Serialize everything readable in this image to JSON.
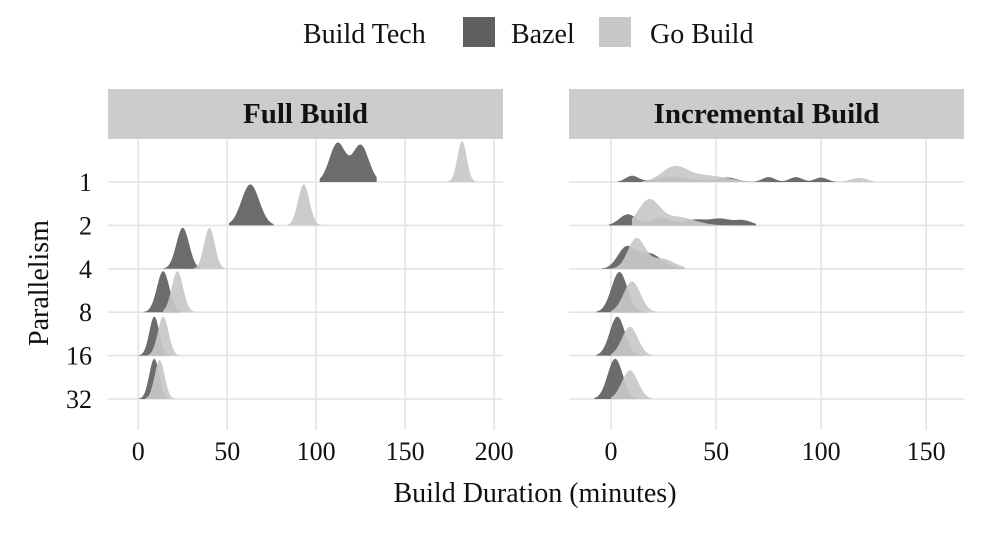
{
  "chart_data": {
    "type": "ridgeline",
    "xlabel": "Build Duration (minutes)",
    "ylabel": "Parallelism",
    "legend": {
      "title": "Build Tech",
      "position": "top",
      "entries": [
        {
          "name": "Bazel",
          "color": "#5f5f5f"
        },
        {
          "name": "Go Build",
          "color": "#c8c8c8"
        }
      ]
    },
    "y_categories": [
      "1",
      "2",
      "4",
      "8",
      "16",
      "32"
    ],
    "panel_bg": "#cccccc",
    "grid_color": "#e4e4e4",
    "panels": [
      {
        "title": "Full Build",
        "x_range": [
          -17,
          205
        ],
        "x_ticks": [
          0,
          50,
          100,
          150,
          200
        ],
        "x_tick_labels": [
          "0",
          "50",
          "100",
          "150",
          "200"
        ],
        "series": [
          {
            "name": "Bazel",
            "color": "#5f5f5f",
            "ridges": [
              {
                "p": "1",
                "lo": 102,
                "hi": 134,
                "peaks": [
                  [
                    112,
                    4.5,
                    0.95
                  ],
                  [
                    125,
                    4.5,
                    0.9
                  ]
                ]
              },
              {
                "p": "2",
                "lo": 51,
                "hi": 76,
                "peaks": [
                  [
                    63,
                    5,
                    1.0
                  ]
                ]
              },
              {
                "p": "4",
                "lo": 14,
                "hi": 35,
                "peaks": [
                  [
                    25,
                    3.6,
                    1.0
                  ]
                ]
              },
              {
                "p": "8",
                "lo": 3,
                "hi": 24,
                "peaks": [
                  [
                    14,
                    3.5,
                    1.0
                  ]
                ]
              },
              {
                "p": "16",
                "lo": 0,
                "hi": 18,
                "peaks": [
                  [
                    9,
                    2.8,
                    0.95
                  ]
                ]
              },
              {
                "p": "32",
                "lo": 0,
                "hi": 17,
                "peaks": [
                  [
                    9,
                    2.8,
                    0.98
                  ]
                ]
              }
            ]
          },
          {
            "name": "Go Build",
            "color": "#c8c8c8",
            "ridges": [
              {
                "p": "1",
                "lo": 173,
                "hi": 193,
                "peaks": [
                  [
                    182,
                    2.6,
                    1.0
                  ]
                ]
              },
              {
                "p": "2",
                "lo": 84,
                "hi": 104,
                "peaks": [
                  [
                    93,
                    3.2,
                    1.0
                  ]
                ]
              },
              {
                "p": "4",
                "lo": 31,
                "hi": 50,
                "peaks": [
                  [
                    40,
                    3.0,
                    1.0
                  ]
                ]
              },
              {
                "p": "8",
                "lo": 14,
                "hi": 33,
                "peaks": [
                  [
                    22,
                    3.2,
                    1.0
                  ]
                ]
              },
              {
                "p": "16",
                "lo": 5,
                "hi": 25,
                "peaks": [
                  [
                    14,
                    3.0,
                    0.95
                  ]
                ]
              },
              {
                "p": "32",
                "lo": 4,
                "hi": 22,
                "peaks": [
                  [
                    12,
                    2.8,
                    0.95
                  ]
                ]
              }
            ]
          }
        ]
      },
      {
        "title": "Incremental Build",
        "x_range": [
          -20,
          168
        ],
        "x_ticks": [
          0,
          50,
          100,
          150
        ],
        "x_tick_labels": [
          "0",
          "50",
          "100",
          "150"
        ],
        "series": [
          {
            "name": "Bazel",
            "color": "#5f5f5f",
            "ridges": [
              {
                "p": "1",
                "lo": 3,
                "hi": 107,
                "peaks": [
                  [
                    10,
                    3,
                    0.15
                  ],
                  [
                    30,
                    8,
                    0.12
                  ],
                  [
                    55,
                    5,
                    0.11
                  ],
                  [
                    75,
                    3,
                    0.12
                  ],
                  [
                    88,
                    3,
                    0.12
                  ],
                  [
                    100,
                    3,
                    0.11
                  ]
                ]
              },
              {
                "p": "2",
                "lo": -1,
                "hi": 69,
                "peaks": [
                  [
                    8,
                    4,
                    0.27
                  ],
                  [
                    24,
                    5,
                    0.18
                  ],
                  [
                    40,
                    5,
                    0.14
                  ],
                  [
                    52,
                    5,
                    0.16
                  ],
                  [
                    63,
                    4,
                    0.12
                  ]
                ]
              },
              {
                "p": "4",
                "lo": -5,
                "hi": 35,
                "peaks": [
                  [
                    7,
                    4,
                    0.48
                  ],
                  [
                    18,
                    6,
                    0.38
                  ]
                ]
              },
              {
                "p": "8",
                "lo": -7,
                "hi": 26,
                "peaks": [
                  [
                    4,
                    3.8,
                    0.98
                  ]
                ]
              },
              {
                "p": "16",
                "lo": -7,
                "hi": 22,
                "peaks": [
                  [
                    3,
                    3.6,
                    0.95
                  ]
                ]
              },
              {
                "p": "32",
                "lo": -8,
                "hi": 22,
                "peaks": [
                  [
                    2,
                    3.6,
                    0.98
                  ]
                ]
              }
            ]
          },
          {
            "name": "Go Build",
            "color": "#c8c8c8",
            "ridges": [
              {
                "p": "1",
                "lo": 15,
                "hi": 125,
                "peaks": [
                  [
                    30,
                    6,
                    0.34
                  ],
                  [
                    45,
                    10,
                    0.16
                  ],
                  [
                    118,
                    4,
                    0.1
                  ]
                ]
              },
              {
                "p": "2",
                "lo": 10,
                "hi": 68,
                "peaks": [
                  [
                    18,
                    5,
                    0.6
                  ],
                  [
                    32,
                    8,
                    0.2
                  ]
                ]
              },
              {
                "p": "4",
                "lo": 0,
                "hi": 35,
                "peaks": [
                  [
                    12,
                    4,
                    0.72
                  ],
                  [
                    24,
                    6,
                    0.25
                  ]
                ]
              },
              {
                "p": "8",
                "lo": 0,
                "hi": 24,
                "peaks": [
                  [
                    10,
                    4,
                    0.75
                  ]
                ]
              },
              {
                "p": "16",
                "lo": 0,
                "hi": 21,
                "peaks": [
                  [
                    9,
                    3.8,
                    0.7
                  ]
                ]
              },
              {
                "p": "32",
                "lo": 0,
                "hi": 20,
                "peaks": [
                  [
                    9,
                    3.8,
                    0.7
                  ]
                ]
              }
            ]
          }
        ]
      }
    ]
  }
}
